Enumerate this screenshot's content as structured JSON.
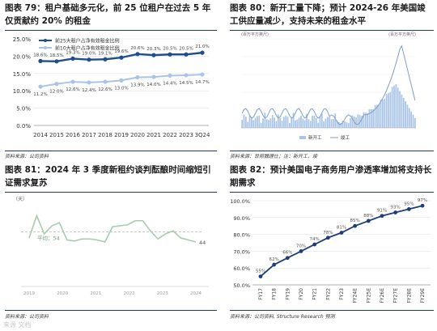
{
  "panels": {
    "p79": {
      "title": "图表 79：租户基础多元化，前 25 位租户在过去 5 年仅贡献约 20% 的租金",
      "source": "资料来源：公司资料"
    },
    "p80": {
      "title": "图表 80：新开工量下降；预计 2024-26 年美国竣工供应量减少，支持未来的租金水平",
      "source": "资料来源：世邦魏理仕；注：新开工、竣"
    },
    "p81": {
      "title": "图表 81：2024 年 3 季度新租约谈判酝酿时间缩短引证需求复苏",
      "source": "资料来源：公司资料"
    },
    "p82": {
      "title": "图表 82：预计美国电子商务用户渗透率增加将支持长期需求",
      "source": "资料来源：公司资料, Structure Research 预测"
    },
    "watermark": "来源 文档"
  },
  "chart_data": [
    {
      "type": "line",
      "categories": [
        "2014",
        "2015",
        "2016",
        "2017",
        "2018",
        "2019",
        "2020",
        "2021",
        "2022",
        "2023",
        "3Q24"
      ],
      "series": [
        {
          "name": "前10大租户占净有效租金比例",
          "values": [
            11.2,
            12.0,
            12.6,
            12.4,
            12.6,
            13.0,
            13.9,
            14.0,
            14.4,
            14.5,
            14.7
          ],
          "color": "#a9c4e8"
        },
        {
          "name": "前25大租户占净有效租金比例",
          "values": [
            18.6,
            18.5,
            19.3,
            19.0,
            19.1,
            19.6,
            20.6,
            20.3,
            20.5,
            20.5,
            21.0
          ],
          "color": "#1f4e8c"
        }
      ],
      "data_labels": [
        [
          "11.2%",
          "12.0%",
          "12.6%",
          "12.4%",
          "12.6%",
          "13.0%",
          "13.9%",
          "14.0%",
          "14.4%",
          "14.5%",
          "14.7%"
        ],
        [
          "18.6%",
          "18.5%",
          "19.3%",
          "19.0%",
          "19.1%",
          "19.6%",
          "20.6%",
          "20.3%",
          "20.5%",
          "20.5%",
          "21.0%"
        ]
      ],
      "ylim": [
        0,
        25
      ],
      "yticks": [
        "0.0%",
        "5.0%",
        "10.0%",
        "15.0%",
        "20.0%",
        "25.0%"
      ],
      "legend": "top-left"
    },
    {
      "type": "bar",
      "description_units": "百万平方英尺",
      "ylabel_left": "(百万平方英尺)",
      "ylabel_right": "(百万平方英尺)",
      "series": [
        {
          "name": "新开工",
          "style": "bars",
          "color": "#a9c4e8"
        },
        {
          "name": "竣工",
          "style": "line",
          "color": "#7f9fc6"
        }
      ],
      "legend": "bottom-center",
      "shape_notes": "dense quarterly bars low through 2010s, rising sharply to a peak near 2022, then falling"
    },
    {
      "type": "line",
      "series": [
        {
          "name": "days",
          "values": [
            48,
            70,
            52,
            60,
            63,
            46,
            45,
            47,
            47,
            46,
            44,
            59,
            60,
            61,
            65,
            65,
            55,
            47,
            52,
            55,
            48,
            46,
            44
          ],
          "color": "#a6ccad"
        },
        {
          "name": "平均",
          "values": [
            54
          ],
          "color": "#c8c8c8",
          "style": "dashed"
        }
      ],
      "average_label": "平均：54",
      "end_label": "44",
      "xticks": [
        "2019",
        "2020",
        "2021",
        "2022",
        "2023",
        "2024"
      ],
      "ylabel": "（天）",
      "ylim": [
        0,
        80
      ]
    },
    {
      "type": "line",
      "categories": [
        "FY17",
        "FY18",
        "FY19",
        "FY20",
        "FY21",
        "FY22",
        "FY23",
        "FY24E",
        "FY25E",
        "FY26E",
        "FY27E",
        "FY28E",
        "FY29E"
      ],
      "series": [
        {
          "name": "penetration",
          "values": [
            55,
            62,
            66,
            70,
            74,
            78,
            81,
            85,
            88,
            91,
            93,
            95,
            97
          ],
          "color": "#1f3d7a"
        }
      ],
      "data_labels": [
        "55%",
        "62%",
        "66%",
        "70%",
        "74%",
        "78%",
        "81%",
        "85%",
        "88%",
        "91%",
        "93%",
        "95%",
        "97%"
      ],
      "ylim": [
        50,
        100
      ],
      "yticks": [
        "50.0%",
        "60.0%",
        "70.0%",
        "80.0%",
        "90.0%",
        "100.0%"
      ]
    }
  ]
}
